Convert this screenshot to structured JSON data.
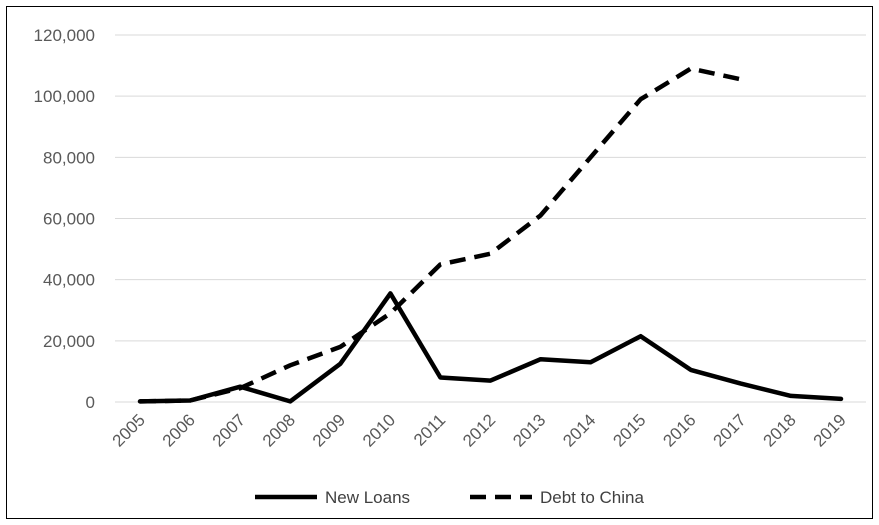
{
  "chart_data": {
    "type": "line",
    "title": "",
    "xlabel": "",
    "ylabel": "",
    "categories": [
      "2005",
      "2006",
      "2007",
      "2008",
      "2009",
      "2010",
      "2011",
      "2012",
      "2013",
      "2014",
      "2015",
      "2016",
      "2017",
      "2018",
      "2019"
    ],
    "ylim": [
      0,
      120000
    ],
    "yticks": [
      0,
      20000,
      40000,
      60000,
      80000,
      100000,
      120000
    ],
    "ytick_labels": [
      "0",
      "20,000",
      "40,000",
      "60,000",
      "80,000",
      "100,000",
      "120,000"
    ],
    "grid": true,
    "legend_position": "bottom",
    "series": [
      {
        "name": "New Loans",
        "style": "solid",
        "color": "#000000",
        "values": [
          200,
          500,
          5000,
          200,
          12500,
          35500,
          8000,
          7000,
          14000,
          13000,
          21500,
          10500,
          6000,
          2000,
          1000
        ]
      },
      {
        "name": "Debt to China",
        "style": "dashed",
        "color": "#000000",
        "values": [
          200,
          500,
          4500,
          12000,
          18000,
          29000,
          45000,
          48500,
          61000,
          80000,
          99000,
          109000,
          105500,
          null,
          null
        ]
      }
    ]
  }
}
